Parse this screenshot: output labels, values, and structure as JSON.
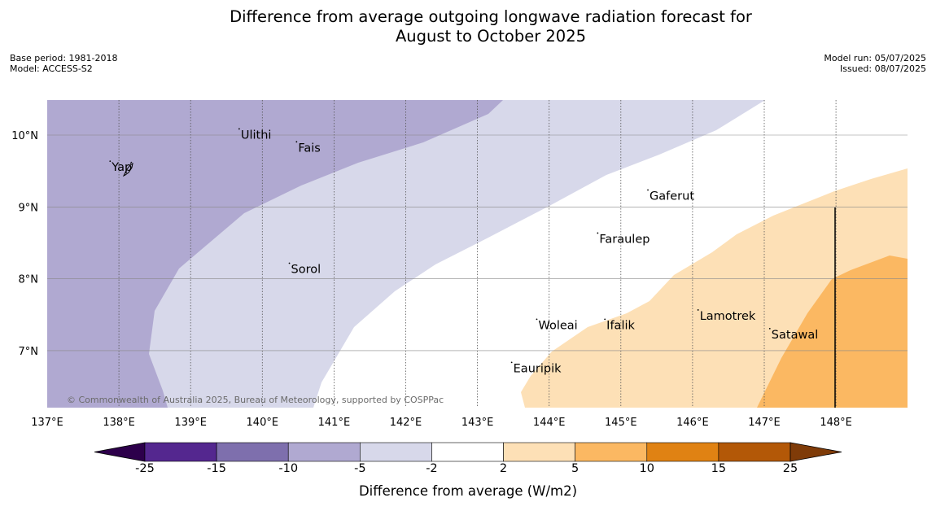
{
  "title_line1": "Difference from average outgoing longwave radiation forecast for",
  "title_line2": "August to October 2025",
  "meta_left": [
    "Base period: 1981-2018",
    "Model: ACCESS-S2"
  ],
  "meta_right": [
    "Model run: 05/07/2025",
    "Issued: 08/07/2025"
  ],
  "copyright": "© Commonwealth of Australia 2025, Bureau of Meteorology, supported by COSPPac",
  "map_extent": {
    "lon": [
      137.0,
      149.0
    ],
    "lat": [
      6.2,
      10.5
    ]
  },
  "lon_ticks": [
    137,
    138,
    139,
    140,
    141,
    142,
    143,
    144,
    145,
    146,
    147,
    148
  ],
  "lon_tick_labels": [
    "137°E",
    "138°E",
    "139°E",
    "140°E",
    "141°E",
    "142°E",
    "143°E",
    "144°E",
    "145°E",
    "146°E",
    "147°E",
    "148°E"
  ],
  "lat_ticks": [
    10,
    9,
    8,
    7
  ],
  "lat_tick_labels": [
    "10°N",
    "9°N",
    "8°N",
    "7°N"
  ],
  "places": [
    {
      "name": "Yap",
      "lon": 137.9,
      "lat": 9.5
    },
    {
      "name": "Ulithi",
      "lon": 139.7,
      "lat": 9.95
    },
    {
      "name": "Fais",
      "lon": 140.5,
      "lat": 9.77
    },
    {
      "name": "Gaferut",
      "lon": 145.4,
      "lat": 9.1
    },
    {
      "name": "Faraulep",
      "lon": 144.7,
      "lat": 8.5
    },
    {
      "name": "Sorol",
      "lon": 140.4,
      "lat": 8.08
    },
    {
      "name": "Lamotrek",
      "lon": 146.1,
      "lat": 7.43
    },
    {
      "name": "Woleai",
      "lon": 143.85,
      "lat": 7.3
    },
    {
      "name": "Ifalik",
      "lon": 144.8,
      "lat": 7.3
    },
    {
      "name": "Satawal",
      "lon": 147.1,
      "lat": 7.17
    },
    {
      "name": "Eauripik",
      "lon": 143.5,
      "lat": 6.7
    }
  ],
  "colorbar": {
    "labels": [
      "-25",
      "-15",
      "-10",
      "-5",
      "-2",
      "2",
      "5",
      "10",
      "15",
      "25"
    ],
    "colors": [
      "#54278f",
      "#7e6fad",
      "#b0a9d1",
      "#d7d8ea",
      "#ffffff",
      "#fde0b6",
      "#fbb862",
      "#e08213",
      "#b35807"
    ],
    "extend_low_color": "#2d004b",
    "extend_high_color": "#7f3b08",
    "title": "Difference from average (W/m2)"
  }
}
